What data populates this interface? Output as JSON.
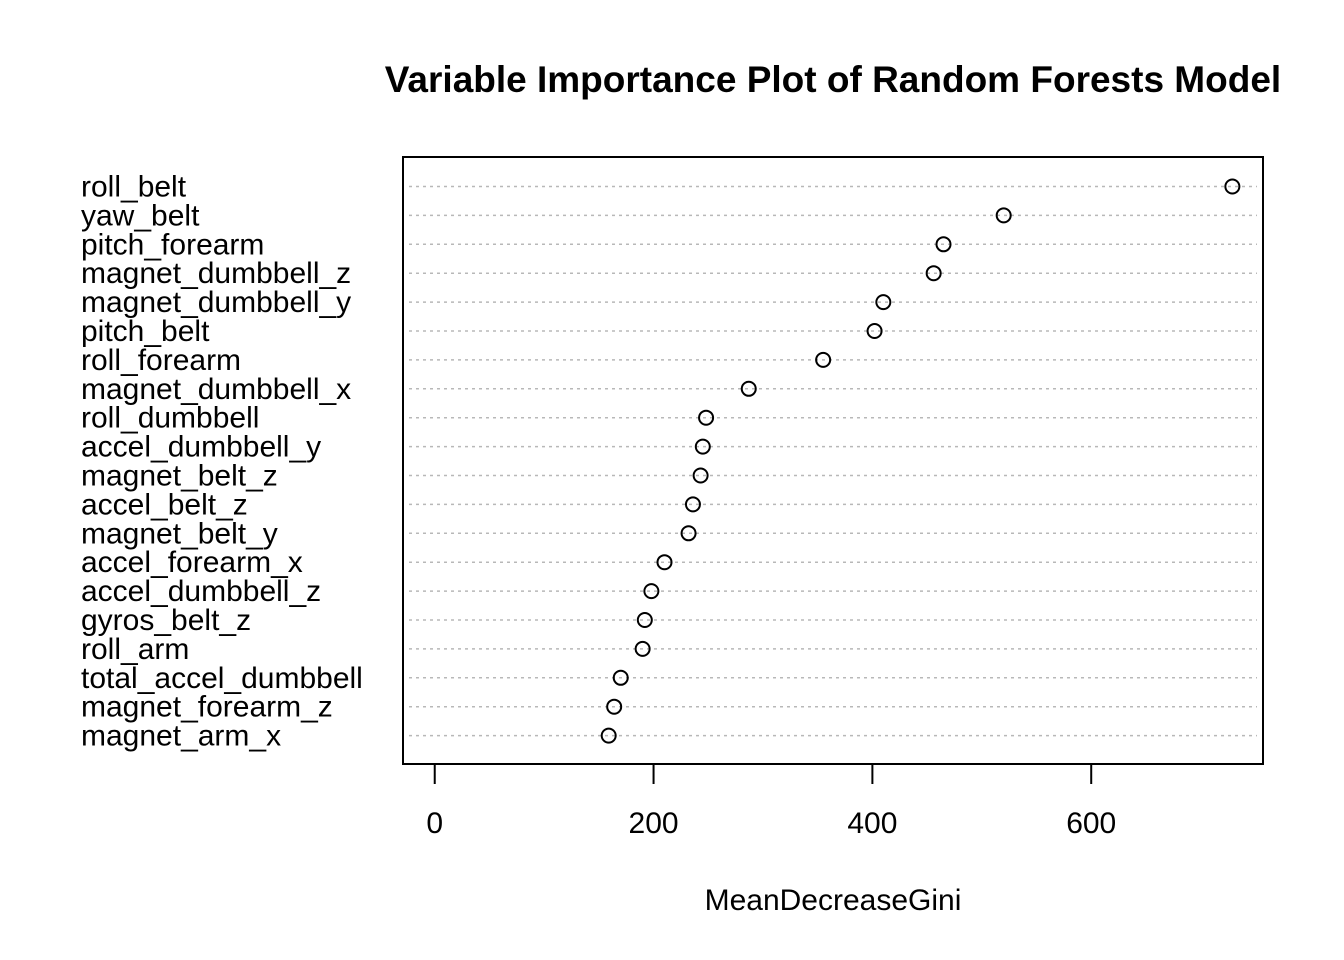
{
  "chart_data": {
    "type": "scatter",
    "subtype": "dotchart",
    "title": "Variable Importance Plot of Random Forests Model",
    "xlabel": "MeanDecreaseGini",
    "ylabel": "",
    "xlim": [
      -29,
      757
    ],
    "xticks": [
      0,
      200,
      400,
      600
    ],
    "grid": "horizontal-dotted",
    "legend": "none",
    "series": [
      {
        "categories": [
          "roll_belt",
          "yaw_belt",
          "pitch_forearm",
          "magnet_dumbbell_z",
          "magnet_dumbbell_y",
          "pitch_belt",
          "roll_forearm",
          "magnet_dumbbell_x",
          "roll_dumbbell",
          "accel_dumbbell_y",
          "magnet_belt_z",
          "accel_belt_z",
          "magnet_belt_y",
          "accel_forearm_x",
          "accel_dumbbell_z",
          "gyros_belt_z",
          "roll_arm",
          "total_accel_dumbbell",
          "magnet_forearm_z",
          "magnet_arm_x"
        ],
        "values": [
          729,
          520,
          465,
          456,
          410,
          402,
          355,
          287,
          248,
          245,
          243,
          236,
          232,
          210,
          198,
          192,
          190,
          170,
          164,
          159
        ]
      }
    ]
  }
}
